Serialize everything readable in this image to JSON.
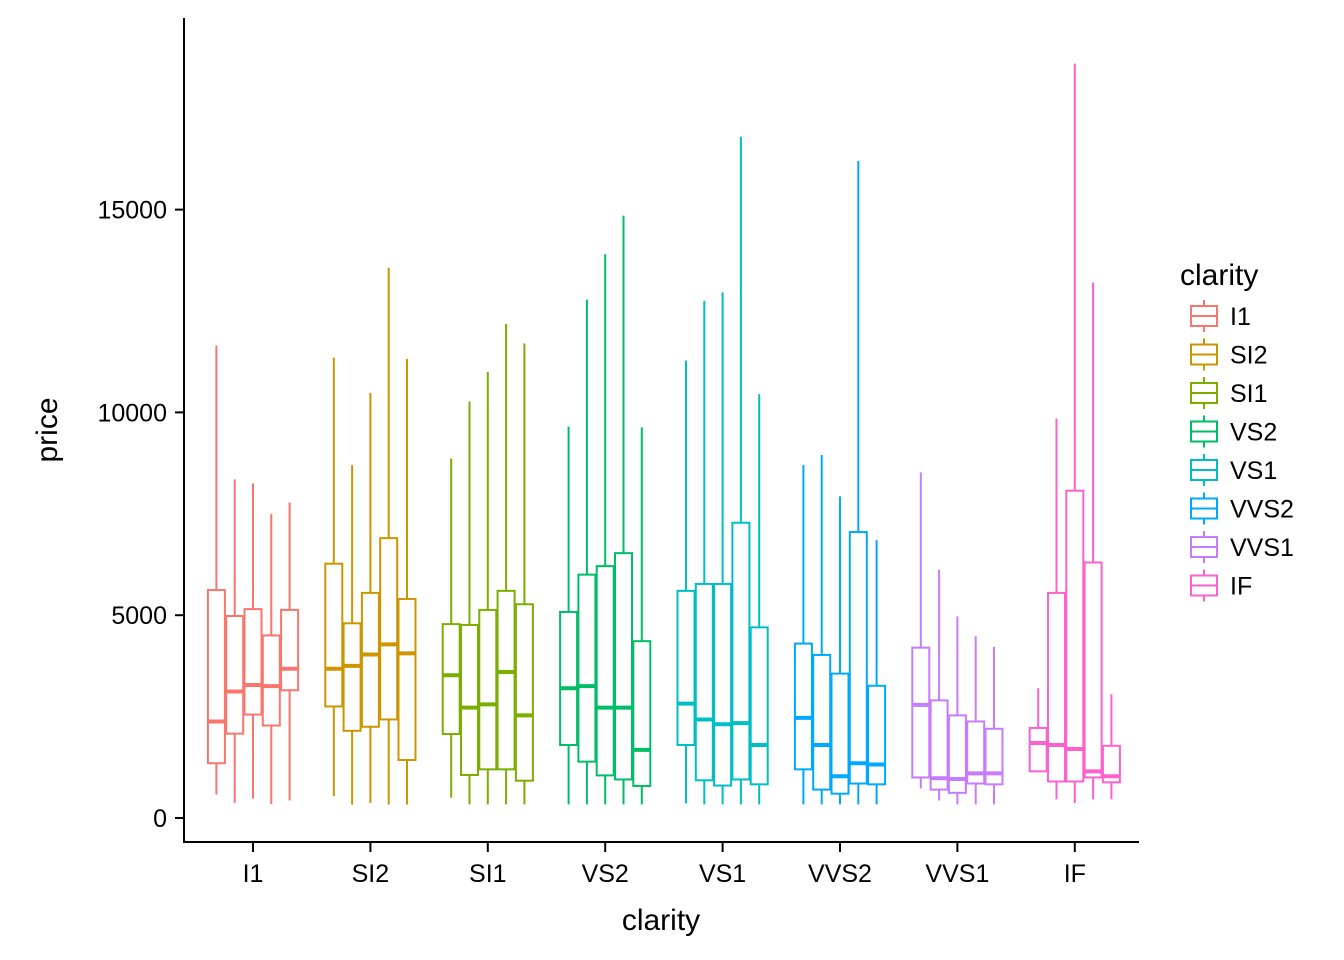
{
  "chart_data": {
    "type": "boxplot",
    "xlabel": "clarity",
    "ylabel": "price",
    "ylim": [
      0,
      19000
    ],
    "yticks": [
      0,
      5000,
      10000,
      15000
    ],
    "grid": false,
    "legend_placement": "right",
    "legend_title": "clarity",
    "groups_per_category": 5,
    "categories": [
      "I1",
      "SI2",
      "SI1",
      "VS2",
      "VS1",
      "VVS2",
      "VVS1",
      "IF"
    ],
    "colors": [
      "#F8766D",
      "#CD9600",
      "#7CAE00",
      "#00BE67",
      "#00BFC4",
      "#00A9FF",
      "#C77CFF",
      "#FF61CC"
    ],
    "series": [
      {
        "name": "I1",
        "boxes": [
          {
            "whisker_low": 580,
            "q1": 1350,
            "median": 2380,
            "q3": 5620,
            "whisker_high": 11650
          },
          {
            "whisker_low": 370,
            "q1": 2080,
            "median": 3120,
            "q3": 4980,
            "whisker_high": 8350
          },
          {
            "whisker_low": 480,
            "q1": 2550,
            "median": 3280,
            "q3": 5150,
            "whisker_high": 8250
          },
          {
            "whisker_low": 345,
            "q1": 2280,
            "median": 3250,
            "q3": 4500,
            "whisker_high": 7500
          },
          {
            "whisker_low": 430,
            "q1": 3150,
            "median": 3680,
            "q3": 5130,
            "whisker_high": 7780
          }
        ]
      },
      {
        "name": "SI2",
        "boxes": [
          {
            "whisker_low": 540,
            "q1": 2750,
            "median": 3680,
            "q3": 6270,
            "whisker_high": 11350
          },
          {
            "whisker_low": 330,
            "q1": 2150,
            "median": 3750,
            "q3": 4800,
            "whisker_high": 8700
          },
          {
            "whisker_low": 370,
            "q1": 2250,
            "median": 4030,
            "q3": 5550,
            "whisker_high": 10480
          },
          {
            "whisker_low": 330,
            "q1": 2430,
            "median": 4280,
            "q3": 6900,
            "whisker_high": 13570
          },
          {
            "whisker_low": 330,
            "q1": 1430,
            "median": 4060,
            "q3": 5400,
            "whisker_high": 11320
          }
        ]
      },
      {
        "name": "SI1",
        "boxes": [
          {
            "whisker_low": 500,
            "q1": 2070,
            "median": 3520,
            "q3": 4780,
            "whisker_high": 8860
          },
          {
            "whisker_low": 335,
            "q1": 1060,
            "median": 2720,
            "q3": 4760,
            "whisker_high": 10270
          },
          {
            "whisker_low": 335,
            "q1": 1200,
            "median": 2800,
            "q3": 5130,
            "whisker_high": 11000
          },
          {
            "whisker_low": 335,
            "q1": 1200,
            "median": 3600,
            "q3": 5600,
            "whisker_high": 12180
          },
          {
            "whisker_low": 335,
            "q1": 920,
            "median": 2530,
            "q3": 5270,
            "whisker_high": 11700
          }
        ]
      },
      {
        "name": "VS2",
        "boxes": [
          {
            "whisker_low": 335,
            "q1": 1800,
            "median": 3200,
            "q3": 5080,
            "whisker_high": 9650
          },
          {
            "whisker_low": 335,
            "q1": 1390,
            "median": 3250,
            "q3": 6000,
            "whisker_high": 12780
          },
          {
            "whisker_low": 335,
            "q1": 1050,
            "median": 2720,
            "q3": 6210,
            "whisker_high": 13900
          },
          {
            "whisker_low": 335,
            "q1": 950,
            "median": 2720,
            "q3": 6530,
            "whisker_high": 14850
          },
          {
            "whisker_low": 335,
            "q1": 790,
            "median": 1680,
            "q3": 4360,
            "whisker_high": 9630
          }
        ]
      },
      {
        "name": "VS1",
        "boxes": [
          {
            "whisker_low": 360,
            "q1": 1800,
            "median": 2820,
            "q3": 5600,
            "whisker_high": 11280
          },
          {
            "whisker_low": 335,
            "q1": 930,
            "median": 2430,
            "q3": 5770,
            "whisker_high": 12750
          },
          {
            "whisker_low": 335,
            "q1": 800,
            "median": 2310,
            "q3": 5770,
            "whisker_high": 12960
          },
          {
            "whisker_low": 335,
            "q1": 950,
            "median": 2340,
            "q3": 7280,
            "whisker_high": 16800
          },
          {
            "whisker_low": 335,
            "q1": 830,
            "median": 1800,
            "q3": 4700,
            "whisker_high": 10450
          }
        ]
      },
      {
        "name": "VVS2",
        "boxes": [
          {
            "whisker_low": 335,
            "q1": 1200,
            "median": 2470,
            "q3": 4300,
            "whisker_high": 8700
          },
          {
            "whisker_low": 335,
            "q1": 700,
            "median": 1800,
            "q3": 4020,
            "whisker_high": 8950
          },
          {
            "whisker_low": 335,
            "q1": 600,
            "median": 1030,
            "q3": 3560,
            "whisker_high": 7930
          },
          {
            "whisker_low": 335,
            "q1": 850,
            "median": 1350,
            "q3": 7050,
            "whisker_high": 16200
          },
          {
            "whisker_low": 335,
            "q1": 830,
            "median": 1320,
            "q3": 3260,
            "whisker_high": 6850
          }
        ]
      },
      {
        "name": "VVS1",
        "boxes": [
          {
            "whisker_low": 730,
            "q1": 1000,
            "median": 2790,
            "q3": 4200,
            "whisker_high": 8520
          },
          {
            "whisker_low": 430,
            "q1": 700,
            "median": 980,
            "q3": 2900,
            "whisker_high": 6120
          },
          {
            "whisker_low": 335,
            "q1": 620,
            "median": 960,
            "q3": 2530,
            "whisker_high": 4970
          },
          {
            "whisker_low": 335,
            "q1": 850,
            "median": 1100,
            "q3": 2380,
            "whisker_high": 4480
          },
          {
            "whisker_low": 335,
            "q1": 830,
            "median": 1100,
            "q3": 2200,
            "whisker_high": 4220
          }
        ]
      },
      {
        "name": "IF",
        "boxes": [
          {
            "whisker_low": 1150,
            "q1": 1150,
            "median": 1850,
            "q3": 2220,
            "whisker_high": 3200
          },
          {
            "whisker_low": 460,
            "q1": 900,
            "median": 1800,
            "q3": 5550,
            "whisker_high": 9850
          },
          {
            "whisker_low": 370,
            "q1": 900,
            "median": 1700,
            "q3": 8070,
            "whisker_high": 18600
          },
          {
            "whisker_low": 460,
            "q1": 1000,
            "median": 1150,
            "q3": 6300,
            "whisker_high": 13200
          },
          {
            "whisker_low": 460,
            "q1": 880,
            "median": 1030,
            "q3": 1780,
            "whisker_high": 3050
          }
        ]
      }
    ]
  }
}
